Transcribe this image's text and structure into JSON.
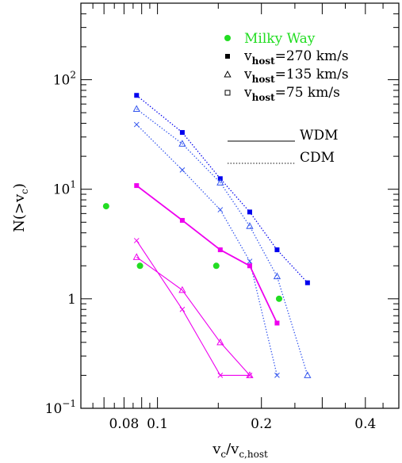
{
  "chart_data": {
    "type": "scatter",
    "xlabel": {
      "main": "v",
      "sub1": "c",
      "mid": "/v",
      "sub2": "c,host"
    },
    "ylabel": {
      "main": "N(>v",
      "sub": "c",
      "tail": ")"
    },
    "xscale": "log",
    "yscale": "log",
    "xlim": [
      0.06,
      0.5
    ],
    "ylim": [
      0.1,
      500
    ],
    "x_tick_labels": [
      {
        "value": 0.08,
        "label": "0.08"
      },
      {
        "value": 0.1,
        "label": "0.1"
      },
      {
        "value": 0.2,
        "label": "0.2"
      },
      {
        "value": 0.4,
        "label": "0.4"
      }
    ],
    "x_major_ticks": [
      0.06,
      0.07,
      0.08,
      0.09,
      0.1,
      0.2,
      0.3,
      0.4,
      0.5
    ],
    "x_minor_ticks": [
      0.065,
      0.075,
      0.085,
      0.095,
      0.15,
      0.25,
      0.35,
      0.45
    ],
    "y_tick_labels": [
      {
        "value": 0.1,
        "base": "10",
        "exp": "−1"
      },
      {
        "value": 1,
        "base": "1",
        "exp": ""
      },
      {
        "value": 10,
        "base": "10",
        "exp": "1"
      },
      {
        "value": 100,
        "base": "10",
        "exp": "2"
      }
    ],
    "grid": false,
    "legend_position": "top-right",
    "legend": {
      "milky_way": {
        "label": "Milky Way",
        "color": "#22dd22"
      },
      "hosts": [
        {
          "main": "v",
          "sub": "host",
          "tail": "=270 km/s",
          "marker": "filled-square"
        },
        {
          "main": "v",
          "sub": "host",
          "tail": "=135 km/s",
          "marker": "open-triangle"
        },
        {
          "main": "v",
          "sub": "host",
          "tail": "=75 km/s",
          "marker": "open-square"
        }
      ],
      "styles": [
        {
          "label": "WDM",
          "dash": "solid"
        },
        {
          "label": "CDM",
          "dash": "dotted"
        }
      ]
    },
    "series": [
      {
        "model": "CDM",
        "color": "#0000ee",
        "marker": "filled-square",
        "line": "dotted",
        "x": [
          0.087,
          0.118,
          0.152,
          0.185,
          0.222,
          0.272
        ],
        "y": [
          72,
          33,
          12.5,
          6.2,
          2.8,
          1.4
        ]
      },
      {
        "model": "CDM",
        "color": "#3355ee",
        "marker": "open-triangle",
        "line": "dotted",
        "x": [
          0.087,
          0.118,
          0.152,
          0.185,
          0.222,
          0.272
        ],
        "y": [
          54,
          26,
          11.5,
          4.6,
          1.6,
          0.2
        ]
      },
      {
        "model": "CDM",
        "color": "#3355ee",
        "marker": "cross",
        "line": "dotted",
        "x": [
          0.087,
          0.118,
          0.152,
          0.185,
          0.222
        ],
        "y": [
          39,
          15,
          6.5,
          2.2,
          0.2
        ]
      },
      {
        "model": "WDM",
        "color": "#ee00ee",
        "marker": "filled-square",
        "line": "solid",
        "x": [
          0.087,
          0.118,
          0.152,
          0.185,
          0.222
        ],
        "y": [
          10.8,
          5.2,
          2.8,
          2.0,
          0.6
        ]
      },
      {
        "model": "WDM",
        "color": "#ee00ee",
        "marker": "open-triangle",
        "line": "solid",
        "x": [
          0.087,
          0.118,
          0.152,
          0.185
        ],
        "y": [
          2.4,
          1.2,
          0.4,
          0.2
        ]
      },
      {
        "model": "WDM",
        "color": "#ee00ee",
        "marker": "cross",
        "line": "solid",
        "x": [
          0.087,
          0.118,
          0.152,
          0.185
        ],
        "y": [
          3.4,
          0.8,
          0.2,
          0.2
        ]
      }
    ],
    "milky_way_points": {
      "color": "#22dd22",
      "x": [
        0.071,
        0.089,
        0.148,
        0.225
      ],
      "y": [
        7,
        2,
        2,
        1
      ]
    }
  }
}
